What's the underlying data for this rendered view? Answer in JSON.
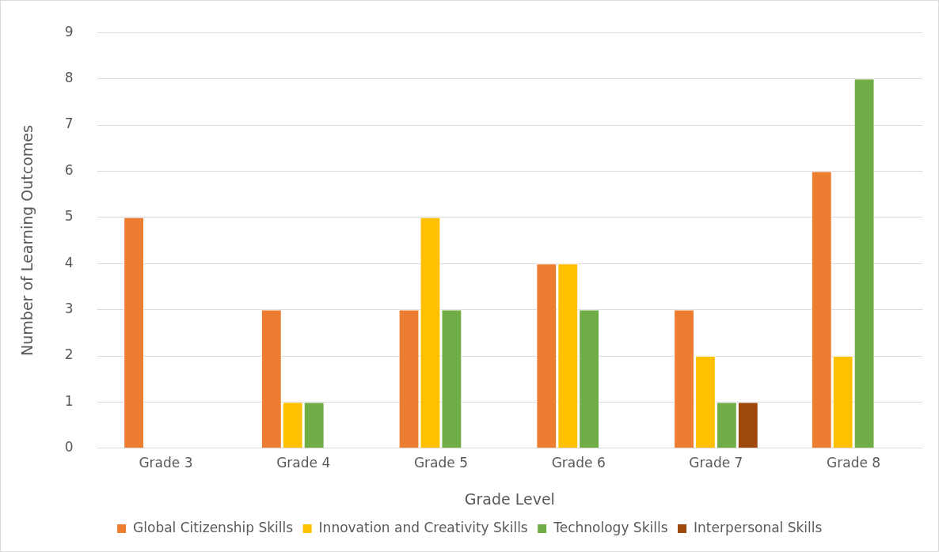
{
  "chart_data": {
    "type": "bar",
    "xlabel": "Grade Level",
    "ylabel": "Number of Learning Outcomes",
    "categories": [
      "Grade 3",
      "Grade 4",
      "Grade 5",
      "Grade 6",
      "Grade 7",
      "Grade 8"
    ],
    "series": [
      {
        "name": "Global Citizenship Skills",
        "color": "#ed7d31",
        "values": [
          5,
          3,
          3,
          4,
          3,
          6
        ]
      },
      {
        "name": "Innovation and Creativity Skills",
        "color": "#ffc000",
        "values": [
          0,
          1,
          5,
          4,
          2,
          2
        ]
      },
      {
        "name": "Technology Skills",
        "color": "#70ad47",
        "values": [
          0,
          1,
          3,
          3,
          1,
          8
        ]
      },
      {
        "name": "Interpersonal Skills",
        "color": "#9e480e",
        "values": [
          0,
          0,
          0,
          0,
          1,
          0
        ]
      }
    ],
    "ylim": [
      0,
      9
    ],
    "yticks": [
      0,
      1,
      2,
      3,
      4,
      5,
      6,
      7,
      8,
      9
    ],
    "grid": "y",
    "legend": "bottom"
  }
}
